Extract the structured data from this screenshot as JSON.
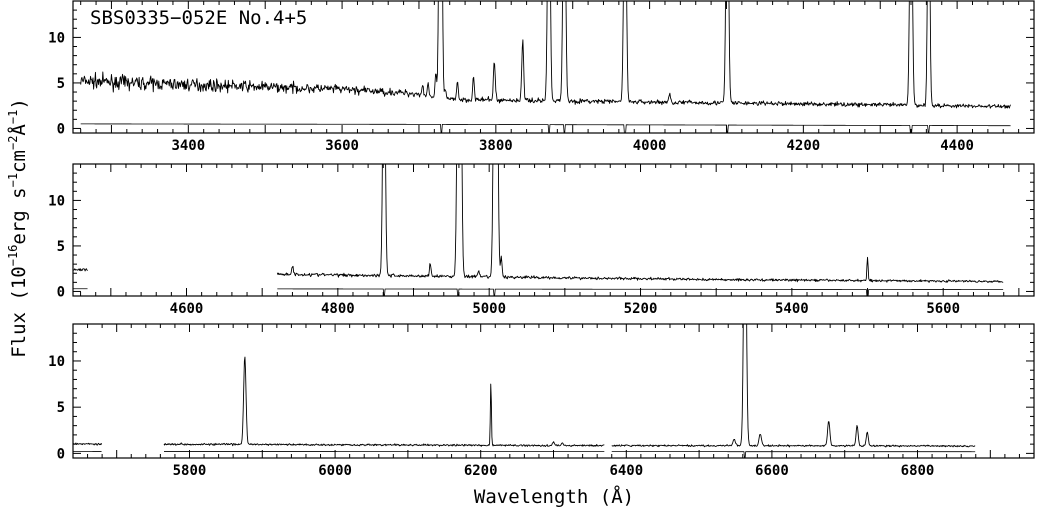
{
  "chart_data": {
    "type": "line",
    "object_label": "SBS0335−052E No.4+5",
    "xlabel": "Wavelength (Å)",
    "ylabel": {
      "prefix": "Flux (10",
      "exp_flux": "−16",
      "unit1": "erg s",
      "exp_s": "−1",
      "unit2": "cm",
      "exp_cm": "−2",
      "unit3": "Å",
      "exp_A": "−1",
      "suffix": ")"
    },
    "grid": false,
    "legend": "none",
    "panels": [
      {
        "xlim": [
          3250,
          4500
        ],
        "ylim": [
          -0.5,
          14
        ],
        "xtick_labels": [
          3400,
          3600,
          3800,
          4000,
          4200,
          4400
        ],
        "ytick_labels": [
          0,
          5,
          10
        ],
        "segments": [
          [
            3260,
            4470
          ]
        ],
        "continuum": [
          [
            3260,
            5.2
          ],
          [
            3400,
            4.8
          ],
          [
            3600,
            4.3
          ],
          [
            3700,
            3.8
          ],
          [
            3730,
            3.2
          ],
          [
            3900,
            3.0
          ],
          [
            4100,
            2.8
          ],
          [
            4300,
            2.6
          ],
          [
            4470,
            2.4
          ]
        ],
        "noise": [
          [
            3260,
            0.55
          ],
          [
            3450,
            0.45
          ],
          [
            3650,
            0.3
          ],
          [
            3750,
            0.2
          ],
          [
            4470,
            0.15
          ]
        ],
        "error_level": [
          [
            3260,
            0.5
          ],
          [
            3700,
            0.45
          ],
          [
            4470,
            0.3
          ]
        ],
        "lines": [
          {
            "x": 3727,
            "peak": 30,
            "width": 1.3
          },
          {
            "x": 3729,
            "peak": 30,
            "width": 1.3
          },
          {
            "x": 3705,
            "peak": 1.0,
            "width": 1.0
          },
          {
            "x": 3712,
            "peak": 1.5,
            "width": 1.0
          },
          {
            "x": 3722,
            "peak": 2.6,
            "width": 1.0
          },
          {
            "x": 3734,
            "peak": 1.2,
            "width": 1.0
          },
          {
            "x": 3750,
            "peak": 2.2,
            "width": 1.0
          },
          {
            "x": 3771,
            "peak": 2.7,
            "width": 1.0
          },
          {
            "x": 3798,
            "peak": 4.2,
            "width": 1.2
          },
          {
            "x": 3835,
            "peak": 6.7,
            "width": 1.2
          },
          {
            "x": 3869,
            "peak": 30,
            "width": 1.6
          },
          {
            "x": 3889,
            "peak": 30,
            "width": 1.6
          },
          {
            "x": 3968,
            "peak": 30,
            "width": 1.6
          },
          {
            "x": 4026,
            "peak": 0.8,
            "width": 1.2
          },
          {
            "x": 4101,
            "peak": 30,
            "width": 1.6
          },
          {
            "x": 4340,
            "peak": 30,
            "width": 1.6
          },
          {
            "x": 4363,
            "peak": 30,
            "width": 1.4
          },
          {
            "x": 4471,
            "peak": 0.4,
            "width": 1.2
          }
        ],
        "bad_columns": [
          3729,
          3869,
          3889,
          3968,
          4101,
          4340,
          4363
        ]
      },
      {
        "xlim": [
          4450,
          5720
        ],
        "ylim": [
          -0.5,
          14
        ],
        "xtick_labels": [
          4600,
          4800,
          5000,
          5200,
          5400,
          5600
        ],
        "ytick_labels": [
          0,
          5,
          10
        ],
        "segments": [
          [
            4450,
            4470
          ],
          [
            4720,
            5680
          ]
        ],
        "continuum": [
          [
            4450,
            2.4
          ],
          [
            4470,
            2.4
          ],
          [
            4720,
            1.9
          ],
          [
            5000,
            1.6
          ],
          [
            5300,
            1.3
          ],
          [
            5680,
            1.1
          ]
        ],
        "noise": [
          [
            4450,
            0.15
          ],
          [
            5680,
            0.08
          ]
        ],
        "error_level": [
          [
            4450,
            0.3
          ],
          [
            4720,
            0.28
          ],
          [
            5680,
            0.2
          ]
        ],
        "lines": [
          {
            "x": 4740,
            "peak": 1.0,
            "width": 1.0
          },
          {
            "x": 4861,
            "peak": 30,
            "width": 1.6
          },
          {
            "x": 4922,
            "peak": 1.4,
            "width": 1.0
          },
          {
            "x": 4959,
            "peak": 30,
            "width": 1.6
          },
          {
            "x": 4962,
            "peak": 30,
            "width": 1.6
          },
          {
            "x": 4986,
            "peak": 0.6,
            "width": 1.0
          },
          {
            "x": 5007,
            "peak": 30,
            "width": 1.6
          },
          {
            "x": 5010,
            "peak": 30,
            "width": 1.6
          },
          {
            "x": 5016,
            "peak": 2.2,
            "width": 1.0
          },
          {
            "x": 5500,
            "peak": 2.6,
            "width": 0.8
          }
        ],
        "bad_columns": [
          4861,
          4959,
          5007,
          5500
        ]
      },
      {
        "xlim": [
          5640,
          6960
        ],
        "ylim": [
          -0.5,
          14
        ],
        "xtick_labels": [
          5800,
          6000,
          6200,
          6400,
          6600,
          6800
        ],
        "ytick_labels": [
          0,
          5,
          10
        ],
        "segments": [
          [
            5640,
            5680
          ],
          [
            5765,
            6370
          ],
          [
            6380,
            6880
          ]
        ],
        "continuum": [
          [
            5640,
            1.05
          ],
          [
            5680,
            1.0
          ],
          [
            5765,
            1.0
          ],
          [
            6300,
            0.85
          ],
          [
            6880,
            0.8
          ]
        ],
        "noise": [
          [
            5640,
            0.08
          ],
          [
            6880,
            0.06
          ]
        ],
        "error_level": [
          [
            5640,
            0.2
          ],
          [
            6880,
            0.18
          ]
        ],
        "lines": [
          {
            "x": 5876,
            "peak": 9.6,
            "width": 1.6
          },
          {
            "x": 6214,
            "peak": 6.9,
            "width": 0.7
          },
          {
            "x": 6300,
            "peak": 0.4,
            "width": 1.2
          },
          {
            "x": 6312,
            "peak": 0.3,
            "width": 1.2
          },
          {
            "x": 6548,
            "peak": 0.7,
            "width": 1.6
          },
          {
            "x": 6563,
            "peak": 30,
            "width": 1.8
          },
          {
            "x": 6584,
            "peak": 1.3,
            "width": 1.6
          },
          {
            "x": 6678,
            "peak": 2.7,
            "width": 1.6
          },
          {
            "x": 6717,
            "peak": 2.2,
            "width": 1.4
          },
          {
            "x": 6731,
            "peak": 1.5,
            "width": 1.4
          }
        ],
        "bad_columns": [
          6563
        ]
      }
    ]
  }
}
